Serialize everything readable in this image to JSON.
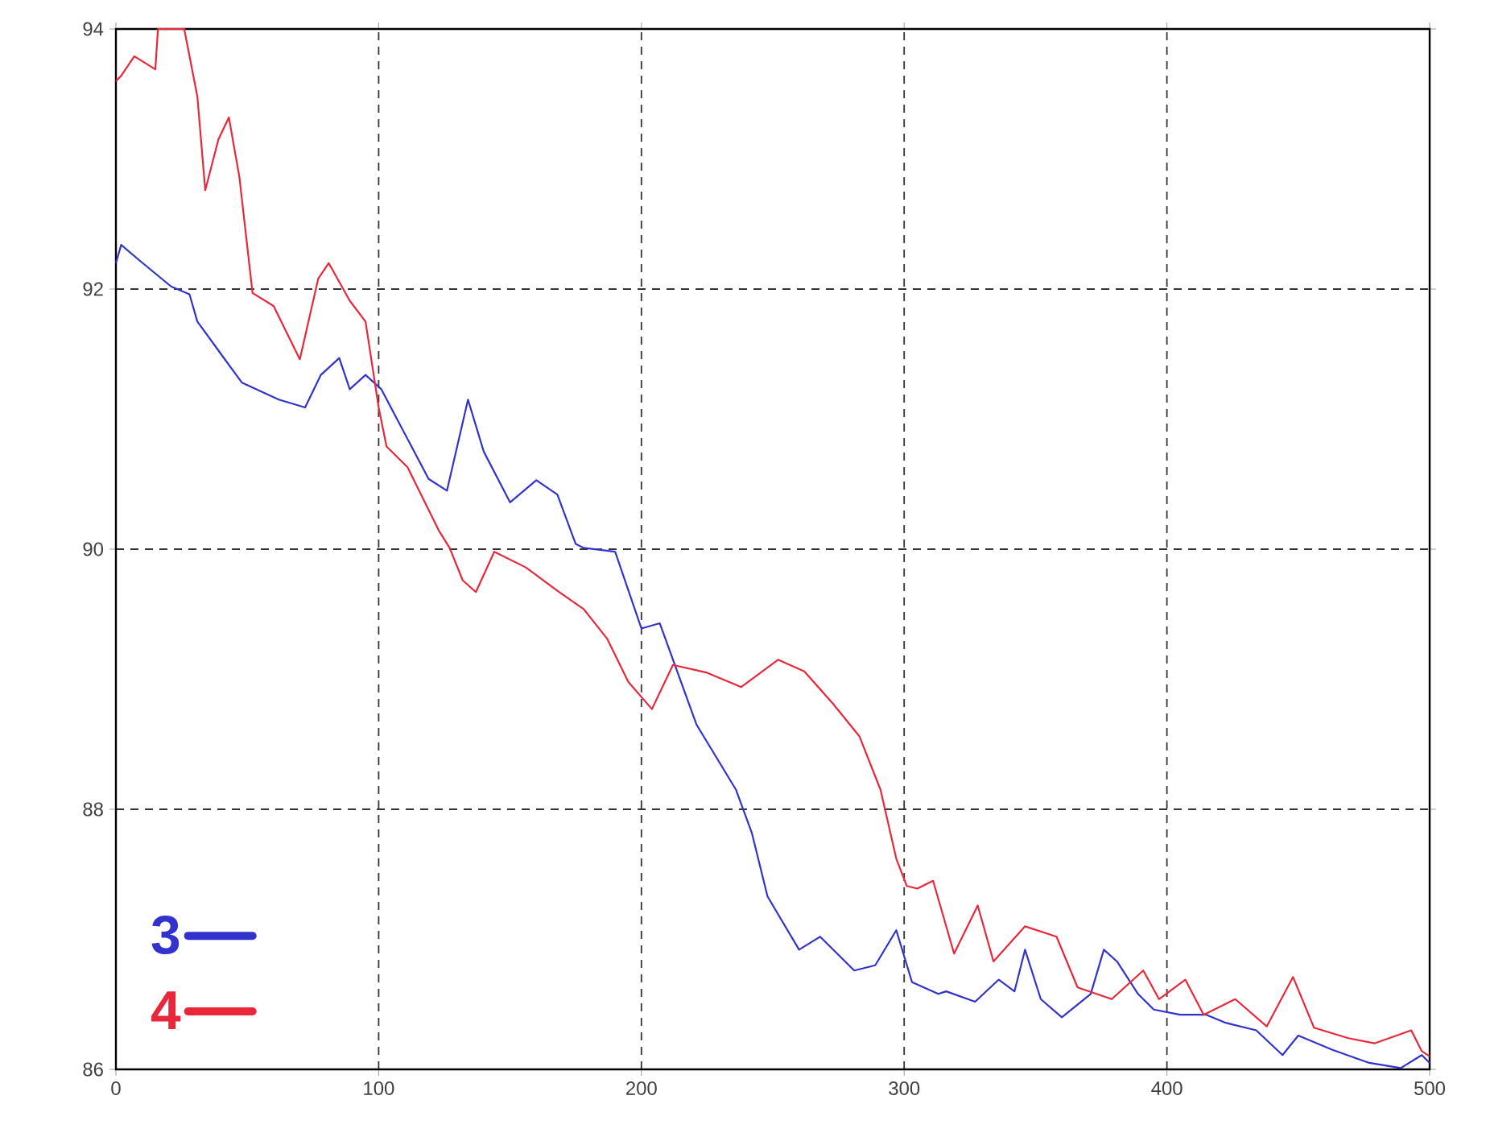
{
  "chart_data": {
    "type": "line",
    "xlim": [
      0,
      500
    ],
    "ylim": [
      86,
      94
    ],
    "xticks": [
      0,
      100,
      200,
      300,
      400,
      500
    ],
    "yticks": [
      86,
      88,
      90,
      92,
      94
    ],
    "grid": true,
    "legend": "bottom left",
    "line_style": "solid",
    "marker": "none",
    "series": [
      {
        "name": "3",
        "color": "#3232cc",
        "x": [
          0,
          2,
          9,
          21,
          28,
          31,
          40,
          48,
          62,
          72,
          78,
          85,
          89,
          95,
          101,
          107,
          119,
          126,
          134,
          140,
          150,
          160,
          168,
          175,
          178,
          190,
          200,
          207,
          221,
          236,
          242,
          248,
          260,
          268,
          281,
          289,
          297,
          303,
          313,
          316,
          327,
          336,
          342,
          346,
          352,
          360,
          371,
          376,
          381,
          389,
          395,
          405,
          415,
          422,
          434,
          444,
          450,
          463,
          477,
          489,
          497,
          500
        ],
        "values": [
          92.2,
          92.34,
          92.22,
          92.02,
          91.96,
          91.75,
          91.5,
          91.28,
          91.15,
          91.09,
          91.34,
          91.47,
          91.23,
          91.34,
          91.23,
          91.0,
          90.54,
          90.45,
          91.15,
          90.75,
          90.36,
          90.53,
          90.42,
          90.04,
          90.01,
          89.98,
          89.39,
          89.43,
          88.65,
          88.15,
          87.82,
          87.33,
          86.92,
          87.02,
          86.76,
          86.8,
          87.07,
          86.67,
          86.58,
          86.6,
          86.52,
          86.69,
          86.6,
          86.92,
          86.54,
          86.4,
          86.58,
          86.92,
          86.83,
          86.58,
          86.46,
          86.42,
          86.42,
          86.36,
          86.3,
          86.11,
          86.26,
          86.15,
          86.05,
          86.01,
          86.11,
          86.05
        ]
      },
      {
        "name": "4",
        "color": "#e8283a",
        "x": [
          0,
          2,
          7,
          15,
          16,
          26,
          31,
          34,
          39,
          43,
          47,
          52,
          60,
          70,
          77,
          81,
          89,
          95,
          100,
          103,
          111,
          123,
          127,
          132,
          137,
          144,
          156,
          168,
          178,
          187,
          195,
          204,
          212,
          225,
          238,
          252,
          262,
          273,
          283,
          291,
          297,
          301,
          305,
          311,
          319,
          328,
          334,
          346,
          358,
          366,
          379,
          391,
          397,
          407,
          414,
          426,
          438,
          448,
          456,
          469,
          479,
          493,
          497,
          500
        ],
        "values": [
          93.6,
          93.64,
          93.79,
          93.69,
          94.0,
          94.0,
          93.48,
          92.76,
          93.15,
          93.32,
          92.86,
          91.97,
          91.87,
          91.46,
          92.08,
          92.2,
          91.91,
          91.75,
          91.09,
          90.79,
          90.63,
          90.14,
          90.01,
          89.76,
          89.67,
          89.98,
          89.86,
          89.68,
          89.54,
          89.31,
          88.98,
          88.77,
          89.11,
          89.05,
          88.94,
          89.15,
          89.06,
          88.81,
          88.56,
          88.15,
          87.62,
          87.41,
          87.39,
          87.45,
          86.89,
          87.26,
          86.83,
          87.1,
          87.02,
          86.63,
          86.54,
          86.76,
          86.54,
          86.69,
          86.42,
          86.54,
          86.33,
          86.71,
          86.32,
          86.24,
          86.2,
          86.3,
          86.14,
          86.1
        ]
      }
    ]
  }
}
